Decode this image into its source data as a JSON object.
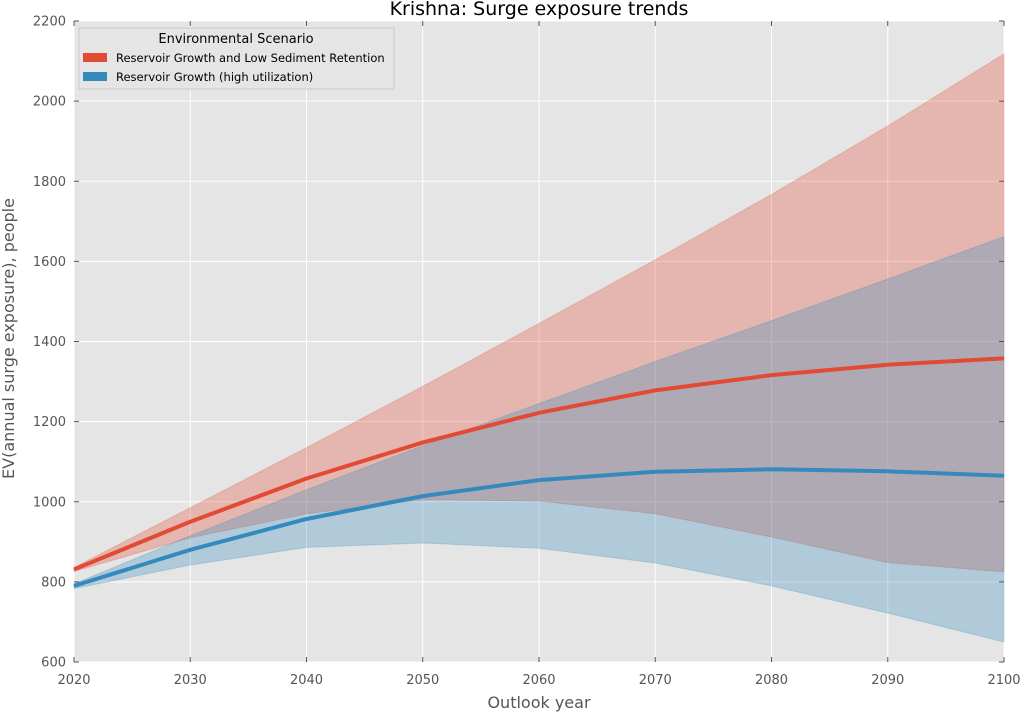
{
  "chart_data": {
    "type": "line",
    "title": "Krishna: Surge exposure trends",
    "xlabel": "Outlook year",
    "ylabel": "EV(annual surge exposure), people",
    "xlim": [
      2020,
      2100
    ],
    "ylim": [
      600,
      2200
    ],
    "x_ticks": [
      2020,
      2030,
      2040,
      2050,
      2060,
      2070,
      2080,
      2090,
      2100
    ],
    "y_ticks": [
      600,
      800,
      1000,
      1200,
      1400,
      1600,
      1800,
      2000,
      2200
    ],
    "grid": true,
    "legend": {
      "title": "Environmental Scenario",
      "placement": "top-left"
    },
    "x": [
      2020,
      2030,
      2040,
      2050,
      2060,
      2070,
      2080,
      2090,
      2100
    ],
    "series": [
      {
        "name": "Reservoir Growth and Low Sediment Retention",
        "color": "#e24a33",
        "values": [
          831,
          950,
          1058,
          1148,
          1222,
          1278,
          1316,
          1342,
          1358
        ],
        "band_upper": [
          836,
          985,
          1135,
          1288,
          1445,
          1604,
          1767,
          1938,
          2118
        ],
        "band_lower": [
          826,
          910,
          970,
          1005,
          1002,
          970,
          912,
          848,
          825
        ]
      },
      {
        "name": "Reservoir Growth (high utilization)",
        "color": "#348abd",
        "values": [
          790,
          880,
          957,
          1014,
          1054,
          1075,
          1081,
          1076,
          1065
        ],
        "band_upper": [
          795,
          915,
          1030,
          1140,
          1245,
          1350,
          1452,
          1556,
          1662
        ],
        "band_lower": [
          783,
          842,
          886,
          897,
          884,
          847,
          790,
          722,
          650
        ]
      }
    ]
  }
}
